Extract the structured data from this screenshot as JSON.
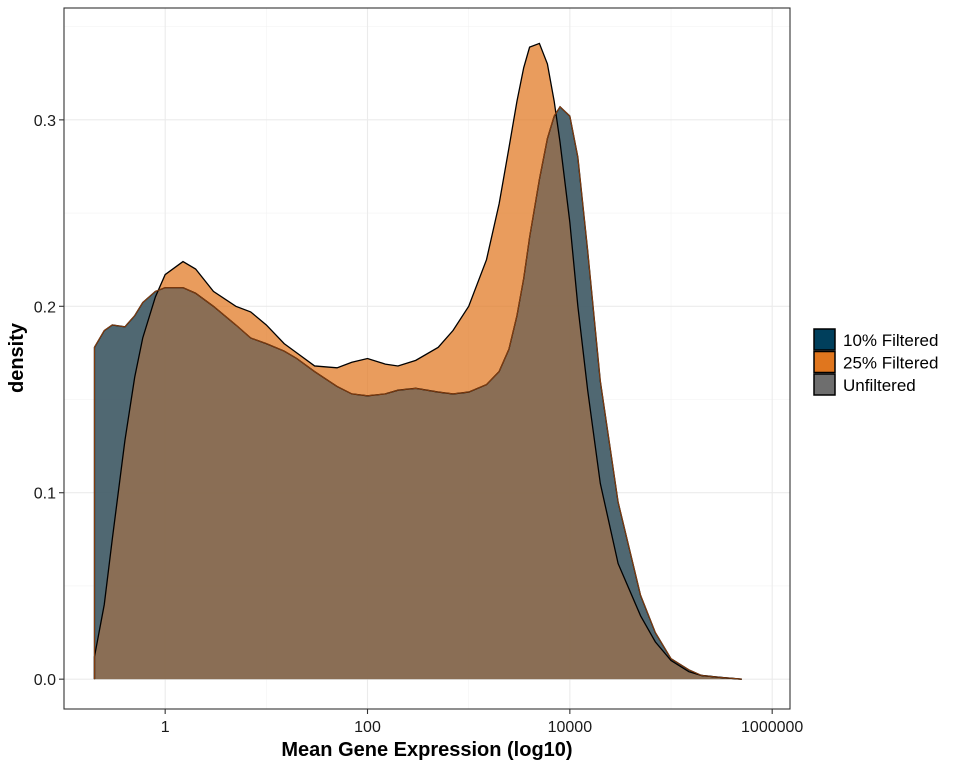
{
  "chart_data": {
    "type": "area",
    "xlabel": "Mean Gene Expression (log10)",
    "ylabel": "density",
    "x_scale": "log10",
    "xlim": [
      0.1,
      1500000
    ],
    "ylim": [
      -0.016,
      0.36
    ],
    "x_ticks": [
      1,
      100,
      10000,
      1000000
    ],
    "x_tick_labels": [
      "1",
      "100",
      "10000",
      "1000000"
    ],
    "y_ticks": [
      0.0,
      0.1,
      0.2,
      0.3
    ],
    "y_tick_labels": [
      "0.0",
      "0.1",
      "0.2",
      "0.3"
    ],
    "grid": true,
    "legend_position": "right",
    "series": [
      {
        "name": "10% Filtered",
        "color": "#003f5c",
        "x": [
          0.2,
          0.25,
          0.3,
          0.4,
          0.5,
          0.6,
          0.8,
          1,
          1.5,
          2,
          3,
          5,
          7,
          10,
          15,
          20,
          30,
          50,
          70,
          100,
          150,
          200,
          300,
          500,
          700,
          1000,
          1500,
          2000,
          2500,
          3000,
          3500,
          4000,
          5000,
          6000,
          7000,
          8000,
          10000,
          12000,
          15000,
          20000,
          30000,
          50000,
          70000,
          100000,
          150000,
          200000,
          300000,
          500000
        ],
        "y": [
          0.178,
          0.187,
          0.19,
          0.189,
          0.195,
          0.202,
          0.208,
          0.21,
          0.21,
          0.207,
          0.2,
          0.19,
          0.183,
          0.18,
          0.176,
          0.172,
          0.165,
          0.157,
          0.153,
          0.152,
          0.153,
          0.155,
          0.156,
          0.154,
          0.153,
          0.154,
          0.158,
          0.165,
          0.177,
          0.195,
          0.215,
          0.237,
          0.268,
          0.29,
          0.302,
          0.307,
          0.302,
          0.28,
          0.23,
          0.16,
          0.095,
          0.045,
          0.025,
          0.011,
          0.005,
          0.002,
          0.001,
          0.0
        ]
      },
      {
        "name": "25% Filtered",
        "color": "#e0761e",
        "x": [
          0.2,
          0.25,
          0.3,
          0.4,
          0.5,
          0.6,
          0.8,
          1,
          1.5,
          2,
          3,
          5,
          7,
          10,
          15,
          20,
          30,
          50,
          70,
          100,
          150,
          200,
          300,
          500,
          700,
          1000,
          1500,
          2000,
          2500,
          3000,
          3500,
          4000,
          5000,
          6000,
          7000,
          8000,
          10000,
          12000,
          15000,
          20000,
          30000,
          50000,
          70000,
          100000,
          150000,
          200000,
          300000,
          500000
        ],
        "y": [
          0.012,
          0.04,
          0.075,
          0.128,
          0.162,
          0.183,
          0.205,
          0.217,
          0.224,
          0.22,
          0.208,
          0.2,
          0.197,
          0.19,
          0.18,
          0.175,
          0.168,
          0.167,
          0.17,
          0.172,
          0.169,
          0.168,
          0.171,
          0.178,
          0.187,
          0.2,
          0.225,
          0.255,
          0.285,
          0.31,
          0.328,
          0.339,
          0.341,
          0.33,
          0.31,
          0.288,
          0.245,
          0.2,
          0.155,
          0.105,
          0.062,
          0.034,
          0.02,
          0.01,
          0.004,
          0.002,
          0.001,
          0.0
        ]
      },
      {
        "name": "Unfiltered",
        "color": "#6e6e6e",
        "x": [
          0.2,
          0.25,
          0.3,
          0.4,
          0.5,
          0.6,
          0.8,
          1,
          1.5,
          2,
          3,
          5,
          7,
          10,
          15,
          20,
          30,
          50,
          70,
          100,
          150,
          200,
          300,
          500,
          700,
          1000,
          1500,
          2000,
          2500,
          3000,
          3500,
          4000,
          5000,
          6000,
          7000,
          8000,
          10000,
          12000,
          15000,
          20000,
          30000,
          50000,
          70000,
          100000,
          150000,
          200000,
          300000,
          500000
        ],
        "y": [
          0.178,
          0.187,
          0.19,
          0.189,
          0.195,
          0.202,
          0.208,
          0.21,
          0.21,
          0.207,
          0.2,
          0.19,
          0.183,
          0.18,
          0.176,
          0.172,
          0.165,
          0.157,
          0.153,
          0.152,
          0.153,
          0.155,
          0.156,
          0.154,
          0.153,
          0.154,
          0.158,
          0.165,
          0.177,
          0.195,
          0.215,
          0.237,
          0.268,
          0.29,
          0.302,
          0.307,
          0.302,
          0.28,
          0.23,
          0.16,
          0.095,
          0.045,
          0.025,
          0.011,
          0.005,
          0.002,
          0.001,
          0.0
        ]
      }
    ]
  }
}
